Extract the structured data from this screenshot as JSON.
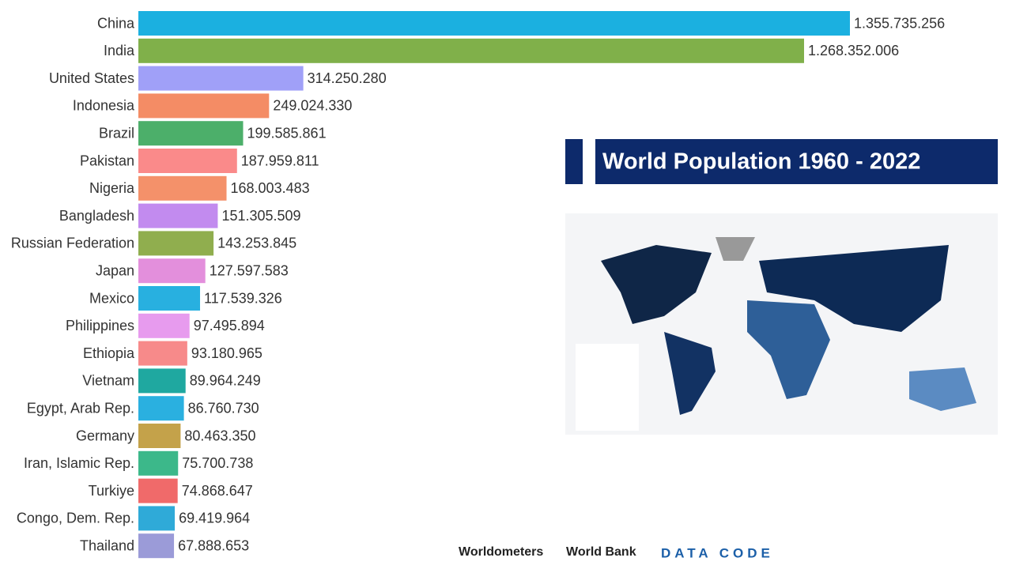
{
  "chart_data": {
    "type": "hbar",
    "title": "World Population 1960 - 2022",
    "categories": [
      "China",
      "India",
      "United States",
      "Indonesia",
      "Brazil",
      "Pakistan",
      "Nigeria",
      "Bangladesh",
      "Russian Federation",
      "Japan",
      "Mexico",
      "Philippines",
      "Ethiopia",
      "Vietnam",
      "Egypt, Arab Rep.",
      "Germany",
      "Iran, Islamic Rep.",
      "Turkiye",
      "Congo, Dem. Rep.",
      "Thailand"
    ],
    "values": [
      1355735256,
      1268352006,
      314250280,
      249024330,
      199585861,
      187959811,
      168003483,
      151305509,
      143253845,
      127597583,
      117539326,
      97495894,
      93180965,
      89964249,
      86760730,
      80463350,
      75700738,
      74868647,
      69419964,
      67888653
    ],
    "value_labels": [
      "1.355.735.256",
      "1.268.352.006",
      "314.250.280",
      "249.024.330",
      "199.585.861",
      "187.959.811",
      "168.003.483",
      "151.305.509",
      "143.253.845",
      "127.597.583",
      "117.539.326",
      "97.495.894",
      "93.180.965",
      "89.964.249",
      "86.760.730",
      "80.463.350",
      "75.700.738",
      "74.868.647",
      "69.419.964",
      "67.888.653"
    ],
    "colors": [
      "#1bb0e0",
      "#80b04a",
      "#a0a0f8",
      "#f48c65",
      "#4caf6a",
      "#fa8a8a",
      "#f4916a",
      "#c28bef",
      "#90ae4e",
      "#e38fdc",
      "#28b0e0",
      "#e79bee",
      "#f78a8a",
      "#1fa8a0",
      "#2ab0e0",
      "#c4a24a",
      "#3cb88a",
      "#f06a6a",
      "#2faad8",
      "#9b9bd8"
    ]
  },
  "footer": {
    "sources": [
      "Worldometers",
      "World Bank"
    ],
    "brand": "DATA CODE"
  }
}
